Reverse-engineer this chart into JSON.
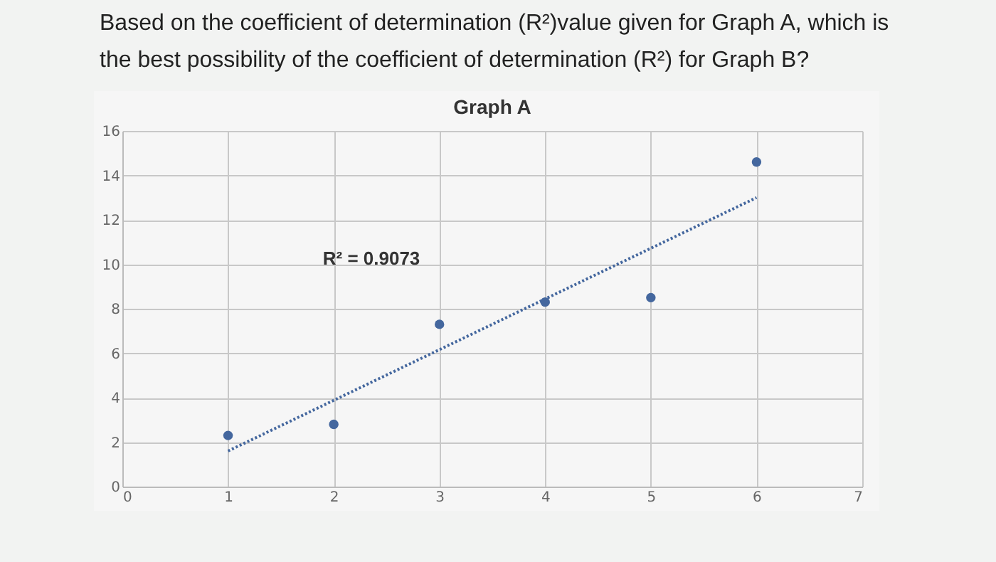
{
  "chart_data": {
    "type": "scatter",
    "title": "Graph A",
    "annotations": [
      "Based on the coefficient of determination (R²)value given for Graph A, which is the best possibility of the coefficient of determination (R²) for Graph B?",
      "R² = 0.9073"
    ],
    "series": [
      {
        "color": "#44679e",
        "x": [
          1,
          2,
          3,
          4,
          5,
          6
        ],
        "values": [
          2.3,
          2.8,
          7.3,
          8.3,
          8.5,
          14.6
        ],
        "marker": "circle"
      },
      {
        "type": "line",
        "color": "#44679e",
        "x": [
          1,
          6
        ],
        "values": [
          1.6,
          13.0
        ],
        "line_style": "dotted"
      }
    ],
    "xlim": [
      0,
      7
    ],
    "xticks": [
      0,
      1,
      2,
      3,
      4,
      5,
      6,
      7
    ],
    "ylim": [
      0,
      16
    ],
    "yticks": [
      0,
      2,
      4,
      6,
      8,
      10,
      12,
      14,
      16
    ],
    "grid": true
  }
}
